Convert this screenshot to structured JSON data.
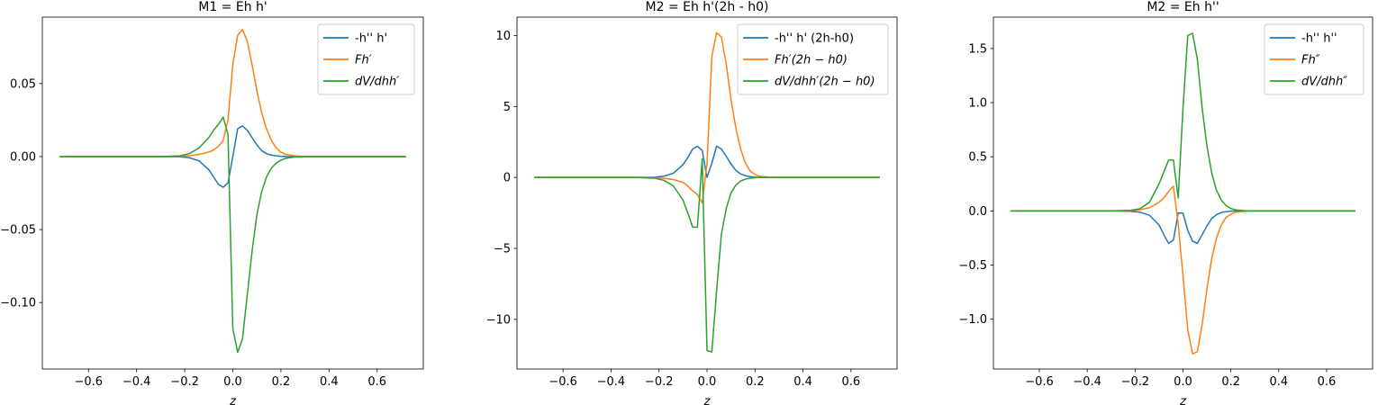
{
  "chart_data": [
    {
      "type": "line",
      "title": "M1 = Eh h'",
      "xlabel": "z",
      "ylabel": "",
      "xlim": [
        -0.792,
        0.792
      ],
      "ylim": [
        -0.1455,
        0.0955
      ],
      "xticks": [
        -0.6,
        -0.4,
        -0.2,
        0.0,
        0.2,
        0.4,
        0.6
      ],
      "xtick_labels": [
        "−0.6",
        "−0.4",
        "−0.2",
        "0.0",
        "0.2",
        "0.4",
        "0.6"
      ],
      "yticks": [
        -0.1,
        -0.05,
        0.0,
        0.05
      ],
      "ytick_labels": [
        "−0.10",
        "−0.05",
        "0.00",
        "0.05"
      ],
      "legend_position": "top-right",
      "x": [
        -0.72,
        -0.3,
        -0.22,
        -0.18,
        -0.14,
        -0.1,
        -0.08,
        -0.06,
        -0.04,
        -0.02,
        0.0,
        0.02,
        0.04,
        0.06,
        0.08,
        0.1,
        0.12,
        0.14,
        0.16,
        0.18,
        0.2,
        0.22,
        0.26,
        0.3,
        0.72
      ],
      "series": [
        {
          "name": "-h'' h'",
          "color": "#1f77b4",
          "values": [
            0,
            0,
            -0.0002,
            -0.0008,
            -0.003,
            -0.009,
            -0.014,
            -0.019,
            -0.021,
            -0.018,
            0.0,
            0.019,
            0.021,
            0.018,
            0.013,
            0.008,
            0.004,
            0.002,
            0.001,
            0.0005,
            0.0002,
            0,
            0,
            0,
            0
          ]
        },
        {
          "name": "Fh′",
          "color": "#ff7f0e",
          "values": [
            0,
            0,
            0.0002,
            0.0006,
            0.0015,
            0.003,
            0.0045,
            0.007,
            0.011,
            0.025,
            0.063,
            0.083,
            0.087,
            0.079,
            0.063,
            0.045,
            0.03,
            0.019,
            0.011,
            0.006,
            0.003,
            0.0015,
            0.0004,
            0,
            0
          ]
        },
        {
          "name": "dV/dhh′",
          "color": "#2ca02c",
          "values": [
            0,
            0,
            0.0005,
            0.002,
            0.006,
            0.013,
            0.018,
            0.022,
            0.027,
            0.015,
            -0.118,
            -0.134,
            -0.125,
            -0.095,
            -0.065,
            -0.04,
            -0.024,
            -0.014,
            -0.008,
            -0.0045,
            -0.0025,
            -0.0012,
            -0.0003,
            0,
            0
          ]
        }
      ]
    },
    {
      "type": "line",
      "title": "M2 = Eh h'(2h - h0)",
      "xlabel": "z",
      "ylabel": "",
      "xlim": [
        -0.792,
        0.792
      ],
      "ylim": [
        -13.5,
        11.3
      ],
      "xticks": [
        -0.6,
        -0.4,
        -0.2,
        0.0,
        0.2,
        0.4,
        0.6
      ],
      "xtick_labels": [
        "−0.6",
        "−0.4",
        "−0.2",
        "0.0",
        "0.2",
        "0.4",
        "0.6"
      ],
      "yticks": [
        -10,
        -5,
        0,
        5,
        10
      ],
      "ytick_labels": [
        "−10",
        "−5",
        "0",
        "5",
        "10"
      ],
      "legend_position": "top-right",
      "x": [
        -0.72,
        -0.3,
        -0.22,
        -0.18,
        -0.14,
        -0.1,
        -0.08,
        -0.06,
        -0.04,
        -0.02,
        0.0,
        0.02,
        0.04,
        0.06,
        0.08,
        0.1,
        0.12,
        0.14,
        0.16,
        0.18,
        0.2,
        0.22,
        0.26,
        0.3,
        0.72
      ],
      "series": [
        {
          "name": "-h'' h' (2h-h0)",
          "color": "#1f77b4",
          "values": [
            0,
            0,
            0.02,
            0.08,
            0.3,
            0.9,
            1.4,
            2.0,
            2.2,
            1.9,
            0.0,
            1.0,
            2.2,
            2.0,
            1.5,
            0.95,
            0.5,
            0.25,
            0.12,
            0.06,
            0.02,
            0,
            0,
            0,
            0
          ]
        },
        {
          "name": "Fh′(2h − h0)",
          "color": "#ff7f0e",
          "values": [
            0,
            0,
            -0.02,
            -0.06,
            -0.15,
            -0.35,
            -0.6,
            -0.95,
            -1.2,
            -1.8,
            1.0,
            8.5,
            10.2,
            9.9,
            8.0,
            5.5,
            3.5,
            2.0,
            1.0,
            0.45,
            0.2,
            0.08,
            0.02,
            0,
            0
          ]
        },
        {
          "name": "dV/dhh′(2h − h0)",
          "color": "#2ca02c",
          "values": [
            0,
            0,
            -0.05,
            -0.2,
            -0.6,
            -1.6,
            -2.5,
            -3.5,
            -3.5,
            1.3,
            -12.2,
            -12.3,
            -8.0,
            -4.0,
            -2.2,
            -1.1,
            -0.55,
            -0.25,
            -0.12,
            -0.05,
            -0.02,
            0,
            0,
            0,
            0
          ]
        }
      ]
    },
    {
      "type": "line",
      "title": "M2 = Eh h''",
      "xlabel": "z",
      "ylabel": "",
      "xlim": [
        -0.792,
        0.792
      ],
      "ylim": [
        -1.46,
        1.79
      ],
      "xticks": [
        -0.6,
        -0.4,
        -0.2,
        0.0,
        0.2,
        0.4,
        0.6
      ],
      "xtick_labels": [
        "−0.6",
        "−0.4",
        "−0.2",
        "0.0",
        "0.2",
        "0.4",
        "0.6"
      ],
      "yticks": [
        -1.0,
        -0.5,
        0.0,
        0.5,
        1.0,
        1.5
      ],
      "ytick_labels": [
        "−1.0",
        "−0.5",
        "0.0",
        "0.5",
        "1.0",
        "1.5"
      ],
      "legend_position": "top-right",
      "x": [
        -0.72,
        -0.3,
        -0.22,
        -0.18,
        -0.14,
        -0.1,
        -0.08,
        -0.06,
        -0.04,
        -0.02,
        0.0,
        0.02,
        0.04,
        0.06,
        0.08,
        0.1,
        0.12,
        0.14,
        0.16,
        0.18,
        0.2,
        0.22,
        0.26,
        0.3,
        0.72
      ],
      "series": [
        {
          "name": "-h'' h''",
          "color": "#1f77b4",
          "values": [
            0,
            0,
            -0.003,
            -0.012,
            -0.04,
            -0.13,
            -0.22,
            -0.3,
            -0.27,
            -0.02,
            -0.02,
            -0.18,
            -0.28,
            -0.3,
            -0.22,
            -0.14,
            -0.07,
            -0.035,
            -0.015,
            -0.006,
            -0.002,
            0,
            0,
            0,
            0
          ]
        },
        {
          "name": "Fh″",
          "color": "#ff7f0e",
          "values": [
            0,
            0,
            0.002,
            0.01,
            0.03,
            0.08,
            0.12,
            0.18,
            0.23,
            -0.12,
            -0.6,
            -1.1,
            -1.32,
            -1.3,
            -1.05,
            -0.72,
            -0.44,
            -0.25,
            -0.13,
            -0.06,
            -0.03,
            -0.012,
            -0.003,
            0,
            0
          ]
        },
        {
          "name": "dV/dhh″",
          "color": "#2ca02c",
          "values": [
            0,
            0,
            0.005,
            0.02,
            0.08,
            0.25,
            0.36,
            0.47,
            0.47,
            0.12,
            0.95,
            1.62,
            1.64,
            1.4,
            0.95,
            0.6,
            0.35,
            0.19,
            0.1,
            0.05,
            0.022,
            0.01,
            0.002,
            0,
            0
          ]
        }
      ]
    }
  ]
}
